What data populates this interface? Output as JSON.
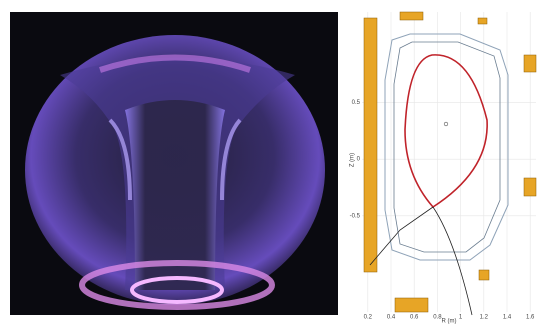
{
  "plot": {
    "x_axis_label": "R (m)",
    "y_axis_label": "Z (m)",
    "xlim": [
      0.15,
      1.65
    ],
    "ylim": [
      -1.35,
      1.3
    ],
    "xticks": [
      0.2,
      0.4,
      0.6,
      0.8,
      1,
      1.2,
      1.4,
      1.6
    ],
    "yticks": [
      0.5,
      0,
      -0.5
    ],
    "grid": true
  }
}
